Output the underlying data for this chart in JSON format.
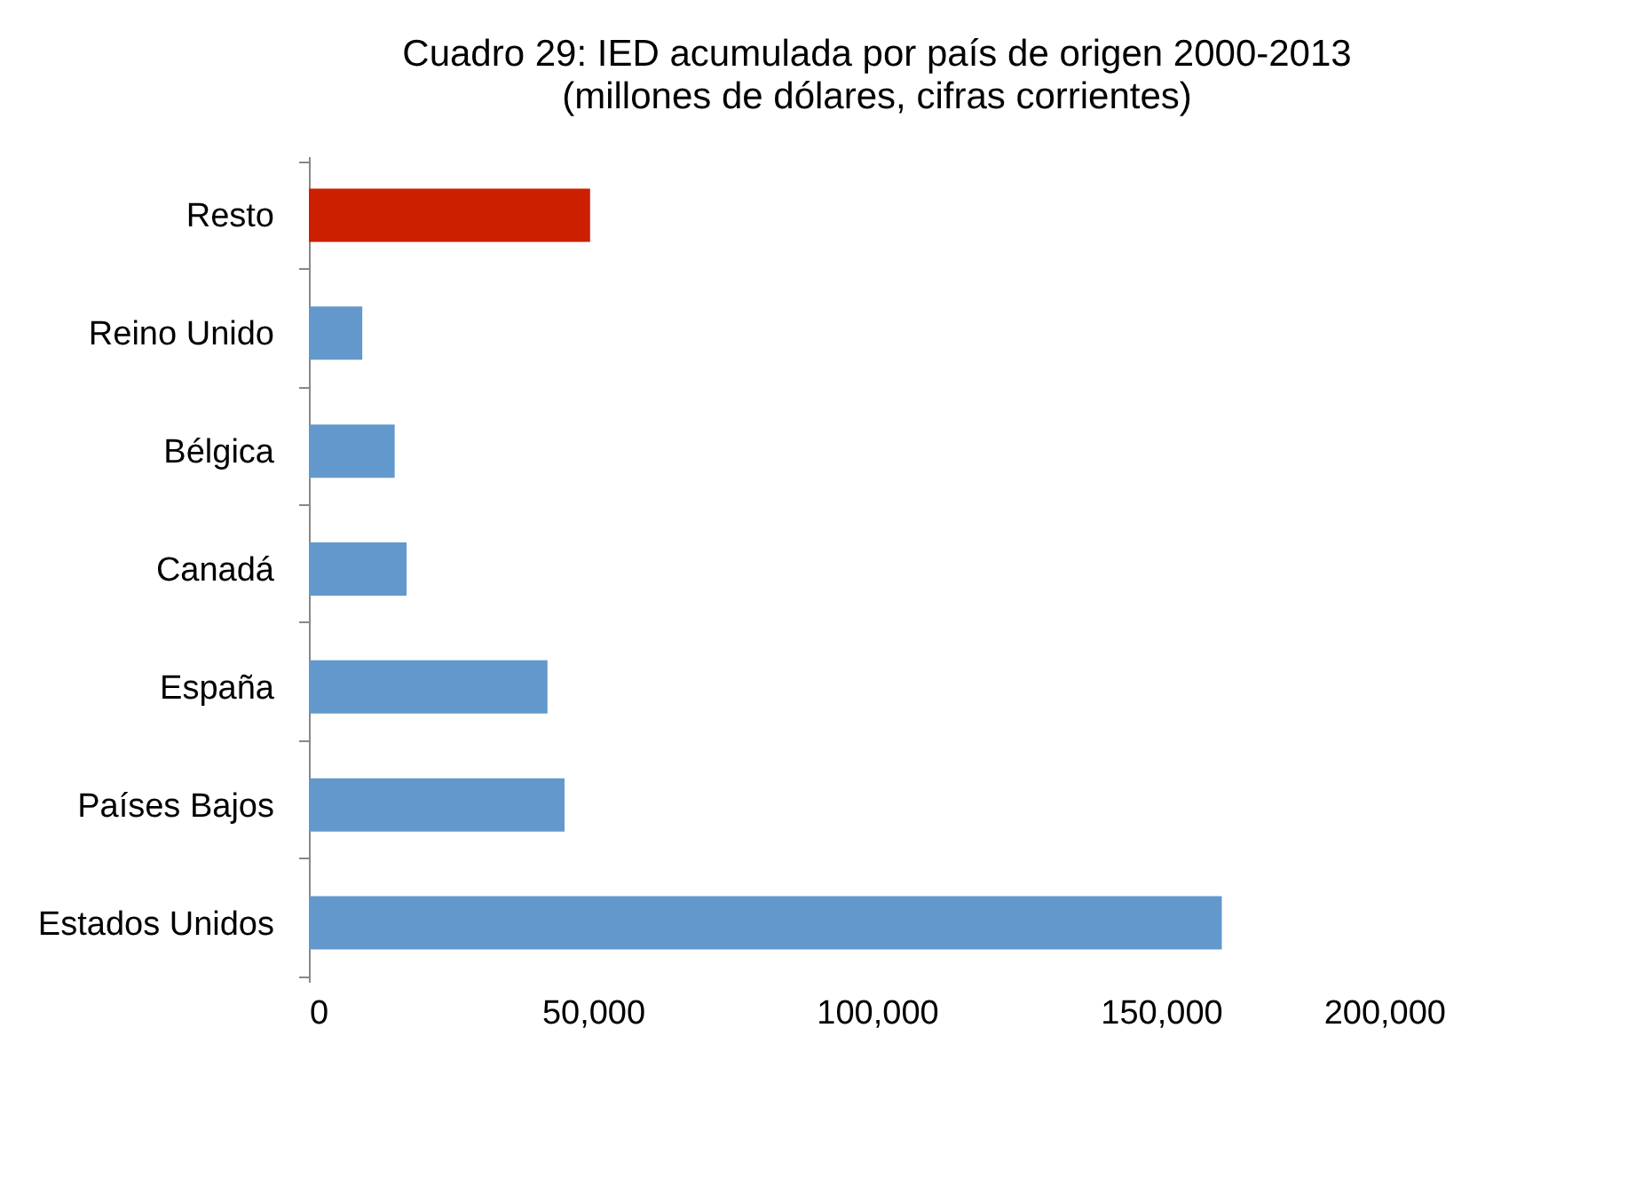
{
  "chart_data": {
    "type": "bar",
    "orientation": "horizontal",
    "title": "Cuadro 29: IED acumulada por país de origen 2000-2013",
    "subtitle": "(millones de dólares, cifras corrientes)",
    "categories": [
      "Resto",
      "Reino Unido",
      "Bélgica",
      "Canadá",
      "España",
      "Países Bajos",
      "Estados Unidos"
    ],
    "values": [
      49500,
      9400,
      15100,
      17200,
      42000,
      45000,
      160700
    ],
    "colors": [
      "#cc1f00",
      "#6398cc",
      "#6398cc",
      "#6398cc",
      "#6398cc",
      "#6398cc",
      "#6398cc"
    ],
    "xlim": [
      0,
      200000
    ],
    "xticks": [
      0,
      {
        "value": 50000,
        "label": "50,000"
      },
      {
        "value": 100000,
        "label": "100,000"
      },
      {
        "value": 150000,
        "label": "150,000"
      },
      {
        "value": 200000,
        "label": "200,000"
      }
    ],
    "grid": false
  }
}
